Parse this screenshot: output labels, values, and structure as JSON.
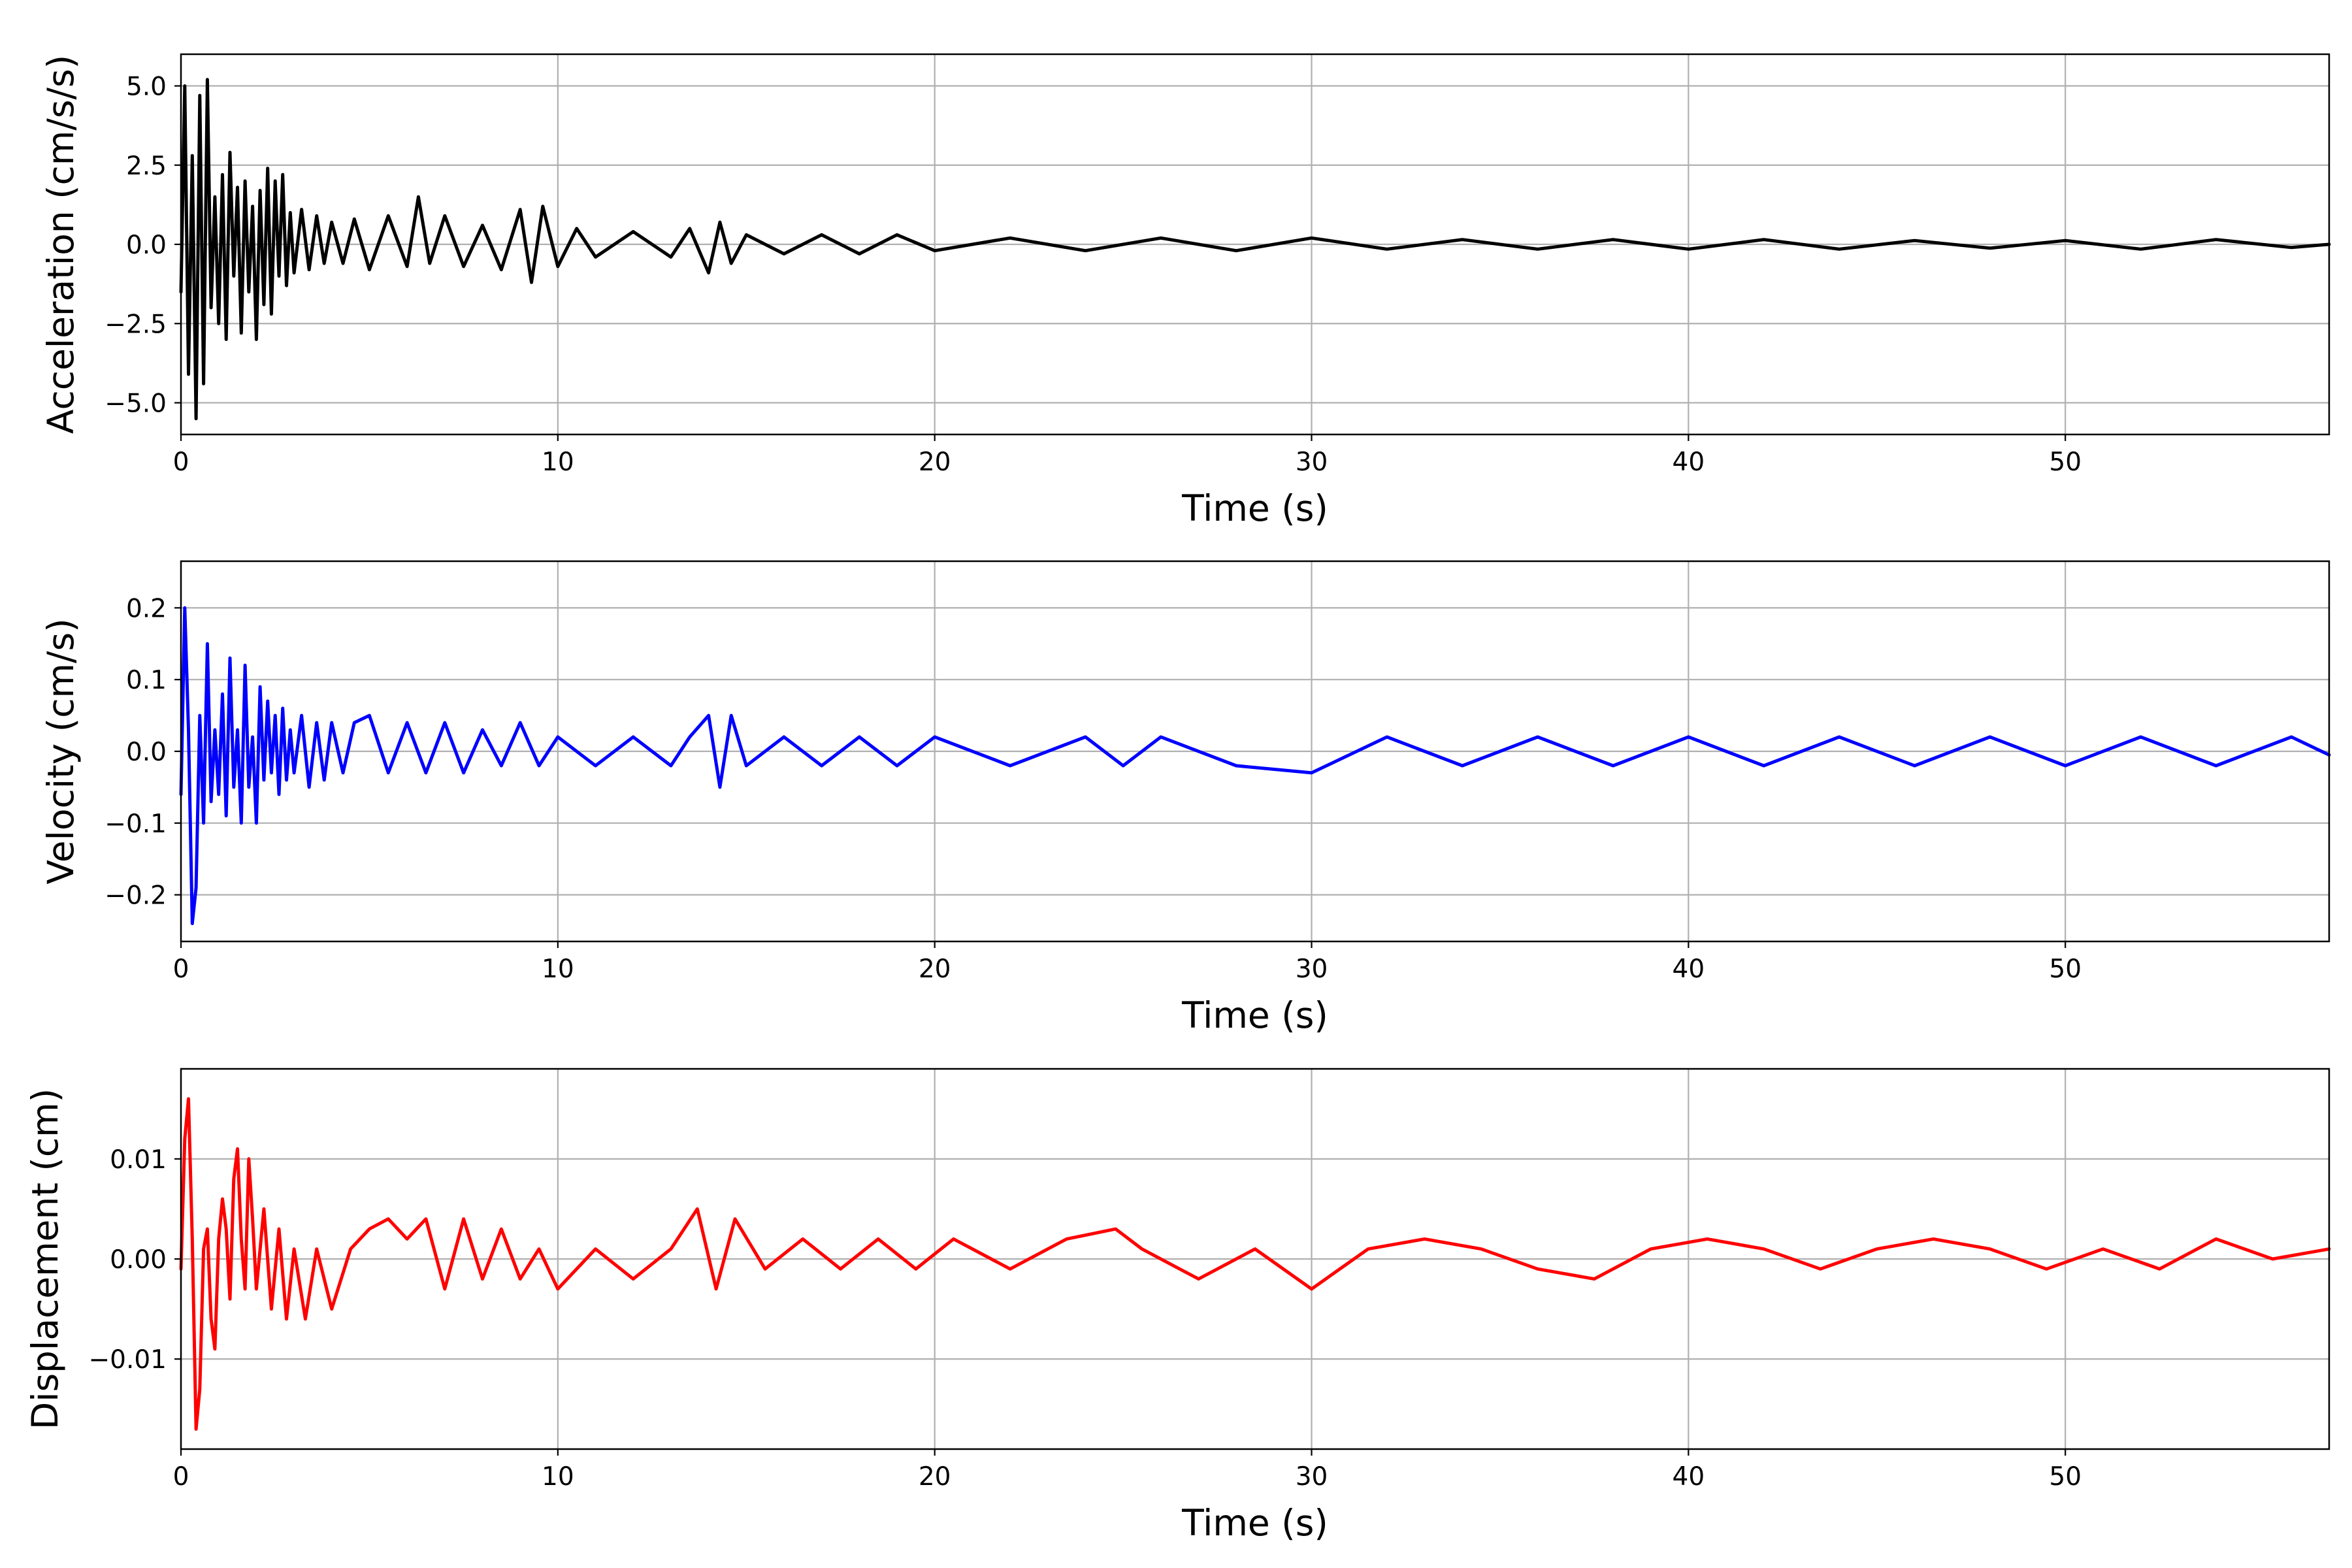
{
  "chart_data": [
    {
      "type": "line",
      "xlabel": "Time (s)",
      "ylabel": "Acceleration (cm/s/s)",
      "xlim": [
        0,
        57
      ],
      "ylim": [
        -6.0,
        6.0
      ],
      "xticks": [
        0,
        10,
        20,
        30,
        40,
        50
      ],
      "yticks": [
        -5.0,
        -2.5,
        0.0,
        2.5,
        5.0
      ],
      "ytick_labels": [
        "−5.0",
        "−2.5",
        "0.0",
        "2.5",
        "5.0"
      ],
      "grid": true,
      "color": "#000000",
      "series": [
        {
          "x": [
            0,
            0.1,
            0.2,
            0.3,
            0.4,
            0.5,
            0.6,
            0.7,
            0.8,
            0.9,
            1.0,
            1.1,
            1.2,
            1.3,
            1.4,
            1.5,
            1.6,
            1.7,
            1.8,
            1.9,
            2.0,
            2.1,
            2.2,
            2.3,
            2.4,
            2.5,
            2.6,
            2.7,
            2.8,
            2.9,
            3.0,
            3.2,
            3.4,
            3.6,
            3.8,
            4.0,
            4.3,
            4.6,
            5.0,
            5.5,
            6.0,
            6.3,
            6.6,
            7.0,
            7.5,
            8.0,
            8.5,
            9.0,
            9.3,
            9.6,
            10.0,
            10.5,
            11.0,
            12.0,
            13.0,
            13.5,
            14.0,
            14.3,
            14.6,
            15.0,
            16.0,
            17.0,
            18.0,
            19.0,
            20.0,
            22.0,
            24.0,
            26.0,
            28.0,
            30.0,
            32.0,
            34.0,
            36.0,
            38.0,
            40.0,
            42.0,
            44.0,
            46.0,
            48.0,
            50.0,
            52.0,
            54.0,
            56.0,
            57.0
          ],
          "y": [
            -1.5,
            5.0,
            -4.1,
            2.8,
            -5.5,
            4.7,
            -4.4,
            5.2,
            -2.0,
            1.5,
            -2.5,
            2.2,
            -3.0,
            2.9,
            -1.0,
            1.8,
            -2.8,
            2.0,
            -1.5,
            1.2,
            -3.0,
            1.7,
            -1.9,
            2.4,
            -2.2,
            2.0,
            -1.0,
            2.2,
            -1.3,
            1.0,
            -0.9,
            1.1,
            -0.8,
            0.9,
            -0.6,
            0.7,
            -0.6,
            0.8,
            -0.8,
            0.9,
            -0.7,
            1.5,
            -0.6,
            0.9,
            -0.7,
            0.6,
            -0.8,
            1.1,
            -1.2,
            1.2,
            -0.7,
            0.5,
            -0.4,
            0.4,
            -0.4,
            0.5,
            -0.9,
            0.7,
            -0.6,
            0.3,
            -0.3,
            0.3,
            -0.3,
            0.3,
            -0.2,
            0.2,
            -0.2,
            0.2,
            -0.2,
            0.2,
            -0.15,
            0.15,
            -0.15,
            0.15,
            -0.15,
            0.15,
            -0.15,
            0.12,
            -0.12,
            0.12,
            -0.15,
            0.15,
            -0.1,
            0.0
          ]
        }
      ]
    },
    {
      "type": "line",
      "xlabel": "Time (s)",
      "ylabel": "Velocity (cm/s)",
      "xlim": [
        0,
        57
      ],
      "ylim": [
        -0.265,
        0.265
      ],
      "xticks": [
        0,
        10,
        20,
        30,
        40,
        50
      ],
      "yticks": [
        -0.2,
        -0.1,
        0.0,
        0.1,
        0.2
      ],
      "ytick_labels": [
        "−0.2",
        "−0.1",
        "0.0",
        "0.1",
        "0.2"
      ],
      "grid": true,
      "color": "#0000ff",
      "series": [
        {
          "x": [
            0,
            0.1,
            0.2,
            0.3,
            0.4,
            0.5,
            0.6,
            0.7,
            0.8,
            0.9,
            1.0,
            1.1,
            1.2,
            1.3,
            1.4,
            1.5,
            1.6,
            1.7,
            1.8,
            1.9,
            2.0,
            2.1,
            2.2,
            2.3,
            2.4,
            2.5,
            2.6,
            2.7,
            2.8,
            2.9,
            3.0,
            3.2,
            3.4,
            3.6,
            3.8,
            4.0,
            4.3,
            4.6,
            5.0,
            5.5,
            6.0,
            6.5,
            7.0,
            7.5,
            8.0,
            8.5,
            9.0,
            9.5,
            10.0,
            11.0,
            12.0,
            13.0,
            13.5,
            14.0,
            14.3,
            14.6,
            15.0,
            16.0,
            17.0,
            18.0,
            19.0,
            20.0,
            22.0,
            24.0,
            25.0,
            26.0,
            28.0,
            30.0,
            32.0,
            34.0,
            36.0,
            38.0,
            40.0,
            42.0,
            44.0,
            46.0,
            48.0,
            50.0,
            52.0,
            54.0,
            56.0,
            57.0
          ],
          "y": [
            -0.06,
            0.2,
            0.03,
            -0.24,
            -0.19,
            0.05,
            -0.1,
            0.15,
            -0.07,
            0.03,
            -0.06,
            0.08,
            -0.09,
            0.13,
            -0.05,
            0.03,
            -0.1,
            0.12,
            -0.05,
            0.02,
            -0.1,
            0.09,
            -0.04,
            0.07,
            -0.03,
            0.05,
            -0.06,
            0.06,
            -0.04,
            0.03,
            -0.03,
            0.05,
            -0.05,
            0.04,
            -0.04,
            0.04,
            -0.03,
            0.04,
            0.05,
            -0.03,
            0.04,
            -0.03,
            0.04,
            -0.03,
            0.03,
            -0.02,
            0.04,
            -0.02,
            0.02,
            -0.02,
            0.02,
            -0.02,
            0.02,
            0.05,
            -0.05,
            0.05,
            -0.02,
            0.02,
            -0.02,
            0.02,
            -0.02,
            0.02,
            -0.02,
            0.02,
            -0.02,
            0.02,
            -0.02,
            -0.03,
            0.02,
            -0.02,
            0.02,
            -0.02,
            0.02,
            -0.02,
            0.02,
            -0.02,
            0.02,
            -0.02,
            0.02,
            -0.02,
            0.02,
            -0.005
          ]
        }
      ]
    },
    {
      "type": "line",
      "xlabel": "Time (s)",
      "ylabel": "Displacement (cm)",
      "xlim": [
        0,
        57
      ],
      "ylim": [
        -0.019,
        0.019
      ],
      "xticks": [
        0,
        10,
        20,
        30,
        40,
        50
      ],
      "yticks": [
        -0.01,
        0.0,
        0.01
      ],
      "ytick_labels": [
        "−0.01",
        "0.00",
        "0.01"
      ],
      "grid": true,
      "color": "#ff0000",
      "series": [
        {
          "x": [
            0,
            0.1,
            0.2,
            0.3,
            0.4,
            0.5,
            0.6,
            0.7,
            0.8,
            0.9,
            1.0,
            1.1,
            1.2,
            1.3,
            1.4,
            1.5,
            1.6,
            1.7,
            1.8,
            1.9,
            2.0,
            2.2,
            2.4,
            2.6,
            2.8,
            3.0,
            3.3,
            3.6,
            4.0,
            4.5,
            5.0,
            5.5,
            6.0,
            6.5,
            7.0,
            7.5,
            8.0,
            8.5,
            9.0,
            9.5,
            10.0,
            11.0,
            12.0,
            13.0,
            13.7,
            14.2,
            14.7,
            15.5,
            16.5,
            17.5,
            18.5,
            19.5,
            20.5,
            22.0,
            23.5,
            24.8,
            25.5,
            27.0,
            28.5,
            30.0,
            31.5,
            33.0,
            34.5,
            36.0,
            37.5,
            39.0,
            40.5,
            42.0,
            43.5,
            45.0,
            46.5,
            48.0,
            49.5,
            51.0,
            52.5,
            54.0,
            55.5,
            57.0
          ],
          "y": [
            -0.001,
            0.012,
            0.016,
            0.002,
            -0.017,
            -0.013,
            0.001,
            0.003,
            -0.006,
            -0.009,
            0.002,
            0.006,
            0.003,
            -0.004,
            0.008,
            0.011,
            0.002,
            -0.003,
            0.01,
            0.004,
            -0.003,
            0.005,
            -0.005,
            0.003,
            -0.006,
            0.001,
            -0.006,
            0.001,
            -0.005,
            0.001,
            0.003,
            0.004,
            0.002,
            0.004,
            -0.003,
            0.004,
            -0.002,
            0.003,
            -0.002,
            0.001,
            -0.003,
            0.001,
            -0.002,
            0.001,
            0.005,
            -0.003,
            0.004,
            -0.001,
            0.002,
            -0.001,
            0.002,
            -0.001,
            0.002,
            -0.001,
            0.002,
            0.003,
            0.001,
            -0.002,
            0.001,
            -0.003,
            0.001,
            0.002,
            0.001,
            -0.001,
            -0.002,
            0.001,
            0.002,
            0.001,
            -0.001,
            0.001,
            0.002,
            0.001,
            -0.001,
            0.001,
            -0.001,
            0.002,
            0.0,
            0.001
          ]
        }
      ]
    }
  ]
}
